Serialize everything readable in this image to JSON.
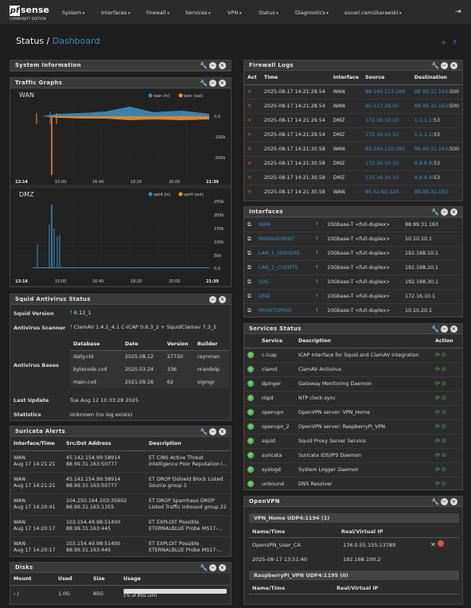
{
  "brand": {
    "logo_pf": "pf",
    "logo_sense": "sense",
    "edition": "COMMUNITY EDITION"
  },
  "nav": [
    "System",
    "Interfaces",
    "Firewall",
    "Services",
    "VPN",
    "Status",
    "Diagnostics",
    "suvari.ramizkaraeski"
  ],
  "breadcrumb": {
    "section": "Status /",
    "page": "Dashboard"
  },
  "system_info": {
    "title": "System Information"
  },
  "traffic": {
    "title": "Traffic Graphs",
    "wan": {
      "label": "WAN",
      "legend_in": "wan (in)",
      "legend_out": "wan (out)",
      "yticks": [
        "0.0",
        "-100k",
        "-200k"
      ],
      "xticks": [
        "13:14",
        "15:00",
        "16:40",
        "18:20",
        "20:00",
        "21:39"
      ]
    },
    "dmz": {
      "label": "DMZ",
      "legend_in": "opt4 (in)",
      "legend_out": "opt4 (out)",
      "yticks": [
        "250k",
        "200k",
        "150k",
        "100k",
        "50k",
        "0.0"
      ],
      "xticks": [
        "13:14",
        "15:00",
        "16:40",
        "18:20",
        "20:00",
        "21:39"
      ]
    }
  },
  "squid": {
    "title": "Squid Antivirus Status",
    "version_label": "Squid Version",
    "version": "6.12_1",
    "scanner_label": "Antivirus Scanner",
    "scanner": "ClamAV 1.4.1_4.1  C-ICAP 0.6.3_2 +  SquidClamav 7.3_2",
    "bases_label": "Antivirus Bases",
    "bases_headers": [
      "Database",
      "Date",
      "Version",
      "Builder"
    ],
    "bases": [
      [
        "daily.cld",
        "2025.08.12",
        "27730",
        "raynman"
      ],
      [
        "bytecode.cvd",
        "2025.03.24",
        "336",
        "nrandolp"
      ],
      [
        "main.cvd",
        "2021.09.16",
        "62",
        "sigmgr"
      ]
    ],
    "last_update_label": "Last Update",
    "last_update": "Tue Aug 12 10:33:28 2025",
    "stats_label": "Statistics",
    "stats": "Unknown (no log exists)"
  },
  "suricata": {
    "title": "Suricata Alerts",
    "headers": [
      "Interface/Time",
      "Src/Dst Address",
      "Description"
    ],
    "rows": [
      [
        "WAN",
        "Aug 17 14:21:21",
        "45.142.154.99:58914",
        "88.99.31.163:50777",
        "ET CINS Active Threat",
        "Intelligence Poor Reputation I..."
      ],
      [
        "WAN",
        "Aug 17 14:21:21",
        "45.142.154.99:58914",
        "88.99.31.163:50777",
        "ET DROP Dshield Block Listed",
        "Source group 1"
      ],
      [
        "WAN",
        "Aug 17 14:20:41",
        "104.250.164.103:35602",
        "88.99.31.163:1355",
        "ET DROP Spamhaus DROP",
        "Listed Traffic Inbound group 22"
      ],
      [
        "WAN",
        "Aug 17 14:20:17",
        "103.154.49.98:51400",
        "88.99.31.163:445",
        "ET EXPLOIT Possible",
        "ETERNALBLUE Probe MS17-..."
      ],
      [
        "WAN",
        "Aug 17 14:20:17",
        "103.154.49.98:51400",
        "88.99.31.163:445",
        "ET EXPLOIT Possible",
        "ETERNALBLUE Probe MS17-..."
      ]
    ]
  },
  "disks": {
    "title": "Disks",
    "headers": [
      "Mount",
      "Used",
      "Size",
      "Usage"
    ],
    "row": {
      "mount": "/",
      "used": "1.0G",
      "size": "85G",
      "usage": "1% of 85G (zfs)",
      "usage_pct": 1
    }
  },
  "fwlogs": {
    "title": "Firewall Logs",
    "headers": [
      "Act",
      "Time",
      "Interface",
      "Source",
      "Destination"
    ],
    "rows": [
      [
        "2025-08-17 14:21:28.54",
        "WAN",
        "88.145.213.166",
        "88.99.31.163",
        ":500"
      ],
      [
        "2025-08-17 14:21:28.54",
        "WAN",
        "90.217.29.50",
        "88.99.31.163",
        ":500"
      ],
      [
        "2025-08-17 14:21:29.54",
        "DMZ",
        "172.16.10.10",
        "1.1.1.1",
        ":53"
      ],
      [
        "2025-08-17 14:21:29.54",
        "DMZ",
        "172.16.10.10",
        "1.1.1.1",
        ":53"
      ],
      [
        "2025-08-17 14:21:30.58",
        "WAN",
        "89.240.120.180",
        "88.99.31.163",
        ":500"
      ],
      [
        "2025-08-17 14:21:30.58",
        "DMZ",
        "172.16.10.10",
        "8.8.8.8",
        ":53"
      ],
      [
        "2025-08-17 14:21:30.58",
        "DMZ",
        "172.16.10.10",
        "8.8.8.8",
        ":53"
      ],
      [
        "2025-08-17 14:21:30.58",
        "WAN",
        "85.52.60.124",
        "88.99.31.163",
        ""
      ]
    ]
  },
  "interfaces": {
    "title": "Interfaces",
    "rows": [
      [
        "WAN",
        "10Gbase-T <full-duplex>",
        "88.99.31.163"
      ],
      [
        "MANAGEMENT",
        "10Gbase-T <full-duplex>",
        "10.10.10.1"
      ],
      [
        "LAN_1_SERVERS",
        "10Gbase-T <full-duplex>",
        "192.168.10.1"
      ],
      [
        "LAN_2_CLIENTS",
        "10Gbase-T <full-duplex>",
        "192.168.20.1"
      ],
      [
        "SOC",
        "10Gbase-T <full-duplex>",
        "192.168.30.1"
      ],
      [
        "DMZ",
        "10Gbase-T <full-duplex>",
        "172.16.10.1"
      ],
      [
        "MONITORING",
        "10Gbase-T <full-duplex>",
        "10.10.20.1"
      ]
    ]
  },
  "services": {
    "title": "Services Status",
    "headers": [
      "Service",
      "Description",
      "Action"
    ],
    "rows": [
      [
        "c-icap",
        "ICAP Interface for Squid and ClamAV integration"
      ],
      [
        "clamd",
        "ClamAV Antivirus"
      ],
      [
        "dpinger",
        "Gateway Monitoring Daemon"
      ],
      [
        "ntpd",
        "NTP clock sync"
      ],
      [
        "openvpn",
        "OpenVPN server: VPN_Home"
      ],
      [
        "openvpn_2",
        "OpenVPN server: RaspberryPi_VPN"
      ],
      [
        "squid",
        "Squid Proxy Server Service"
      ],
      [
        "suricata",
        "Suricata IDS/IPS Daemon"
      ],
      [
        "syslogd",
        "System Logger Daemon"
      ],
      [
        "unbound",
        "DNS Resolver"
      ]
    ]
  },
  "openvpn": {
    "title": "OpenVPN",
    "s1": {
      "title": "VPN_Home UDP4:1194 (1)",
      "h1": "Name/Time",
      "h2": "Real/Virtual IP",
      "name": "OpenVPN_User_CA",
      "time": "2025-08-17 13:51:40",
      "real": "176.0.55.155:13789",
      "virtual": "192.168.100.2"
    },
    "s2": {
      "title": "RaspberryPi_VPN UDP4:1195 (0)",
      "h1": "Name/Time",
      "h2": "Real/Virtual IP"
    }
  }
}
